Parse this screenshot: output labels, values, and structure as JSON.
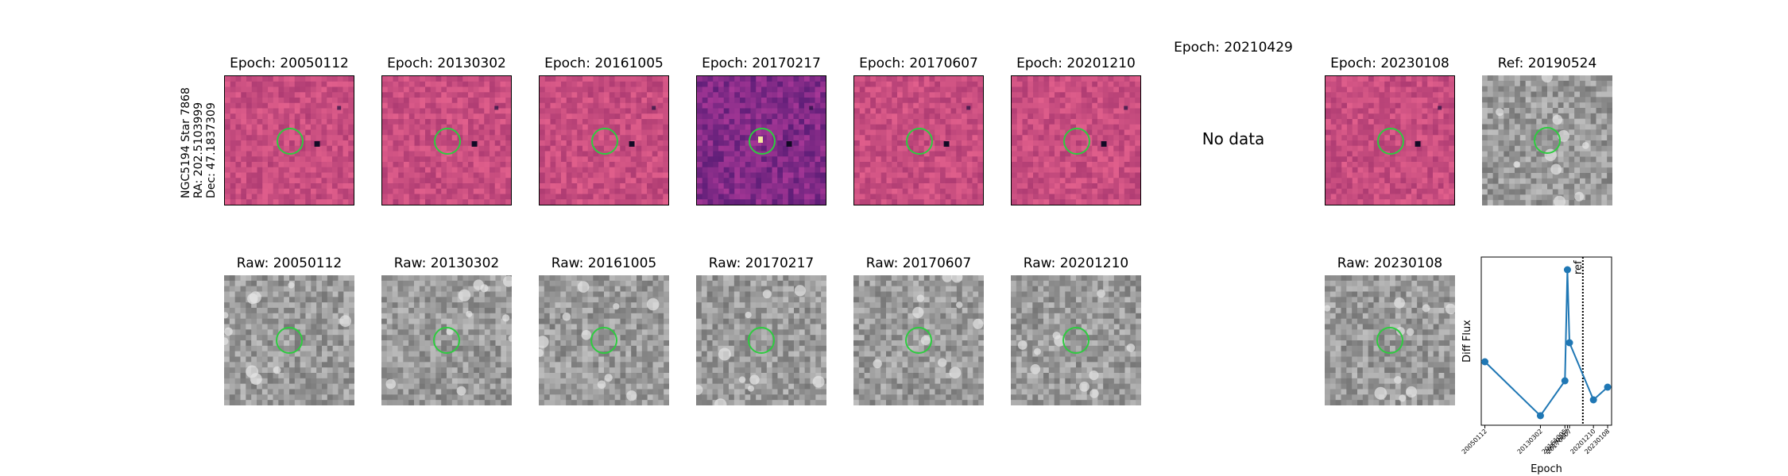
{
  "star": {
    "name": "NGC5194 Star 7868",
    "ra": "RA: 202.5103999",
    "dec": "Dec: 47.1837309"
  },
  "diff_row": [
    {
      "title": "Epoch: 20050112",
      "style": "magenta"
    },
    {
      "title": "Epoch: 20130302",
      "style": "magenta"
    },
    {
      "title": "Epoch: 20161005",
      "style": "magenta"
    },
    {
      "title": "Epoch: 20170217",
      "style": "purple"
    },
    {
      "title": "Epoch: 20170607",
      "style": "magenta"
    },
    {
      "title": "Epoch: 20201210",
      "style": "magenta"
    },
    {
      "title": "Epoch: 20210429",
      "no_data": "No data"
    },
    {
      "title": "Epoch: 20230108",
      "style": "magenta"
    },
    {
      "title": "Ref: 20190524",
      "style": "gray"
    }
  ],
  "raw_row": [
    {
      "title": "Raw: 20050112"
    },
    {
      "title": "Raw: 20130302"
    },
    {
      "title": "Raw: 20161005"
    },
    {
      "title": "Raw: 20170217"
    },
    {
      "title": "Raw: 20170607"
    },
    {
      "title": "Raw: 20201210"
    },
    {
      "title": "Raw: 20230108"
    }
  ],
  "chart_data": {
    "type": "line",
    "xlabel": "Epoch",
    "ylabel": "Diff Flux",
    "categories": [
      "20050112",
      "20130302",
      "20161005",
      "20170217",
      "20170607",
      "20201210",
      "20230108"
    ],
    "x": [
      2005.03,
      2013.17,
      2016.76,
      2017.13,
      2017.43,
      2020.94,
      2023.02
    ],
    "values": [
      0.42,
      0.08,
      0.3,
      1.0,
      0.54,
      0.18,
      0.26
    ],
    "ref_line": {
      "x": 2019.39,
      "label": "ref"
    },
    "color": "#1f77b4",
    "grid": false
  }
}
